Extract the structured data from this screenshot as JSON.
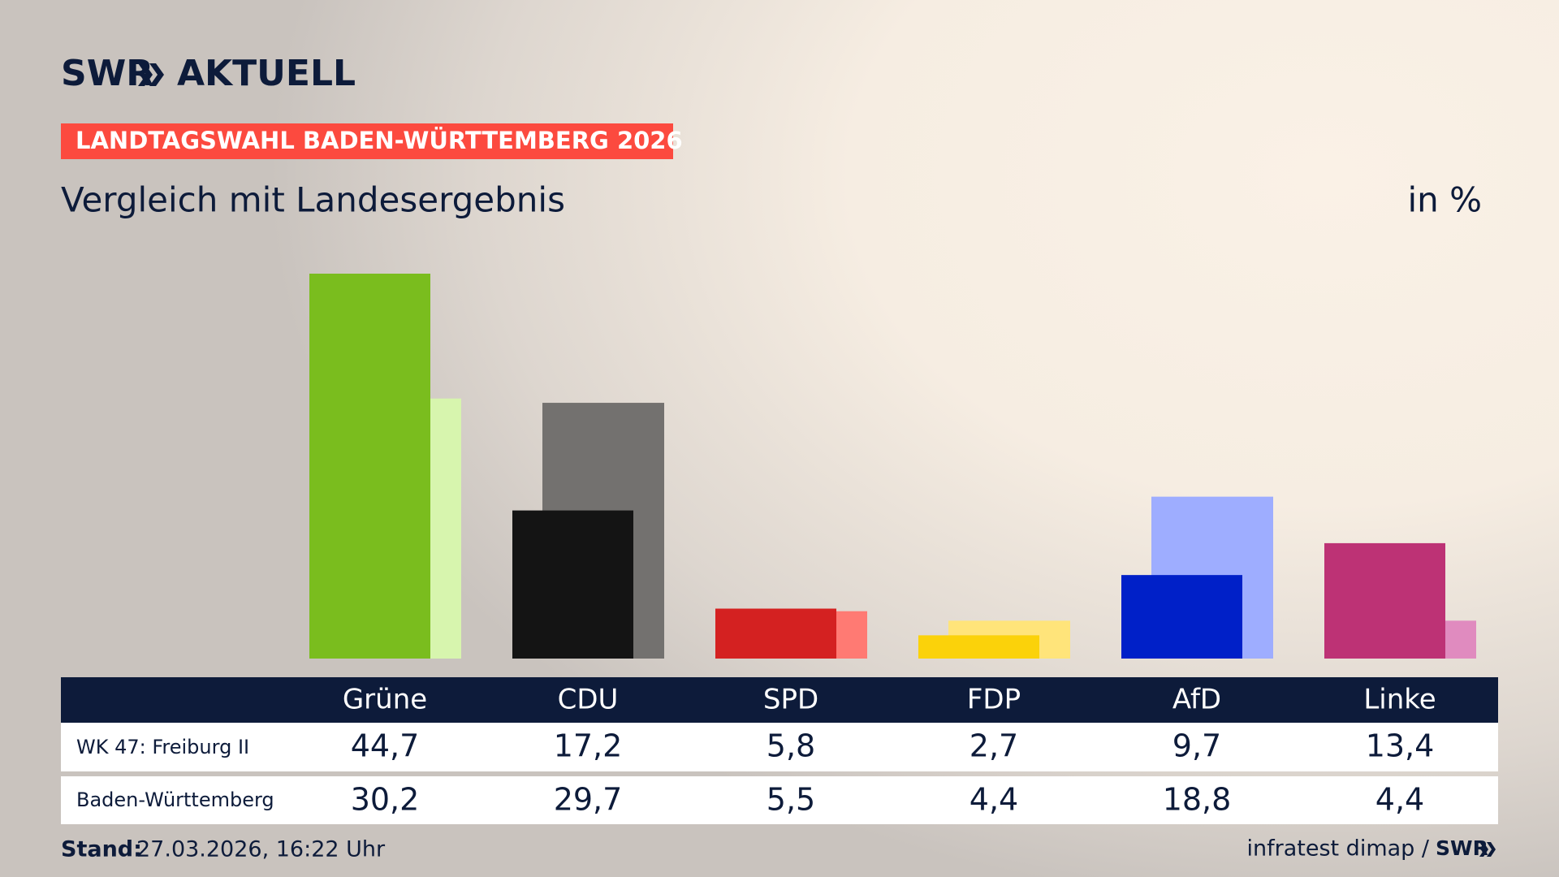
{
  "brand": {
    "name": "SWR",
    "product": "AKTUELL"
  },
  "chart_data": {
    "type": "bar",
    "header": "LANDTAGSWAHL BADEN-WÜRTTEMBERG 2026",
    "title": "Vergleich mit Landesergebnis",
    "unit": "in %",
    "categories": [
      "Grüne",
      "CDU",
      "SPD",
      "FDP",
      "AfD",
      "Linke"
    ],
    "series": [
      {
        "name": "WK 47: Freiburg II",
        "colors": [
          "#7abd1e",
          "#141414",
          "#d42121",
          "#fbd20a",
          "#0020c8",
          "#bd3275"
        ],
        "values": [
          44.7,
          17.2,
          5.8,
          2.7,
          9.7,
          13.4
        ],
        "value_labels": [
          "44,7",
          "17,2",
          "5,8",
          "2,7",
          "9,7",
          "13,4"
        ]
      },
      {
        "name": "Baden-Württemberg",
        "colors": [
          "#d7f5ae",
          "#73716f",
          "#ff7a73",
          "#ffe47a",
          "#9eadff",
          "#e08bbf"
        ],
        "values": [
          30.2,
          29.7,
          5.5,
          4.4,
          18.8,
          4.4
        ],
        "value_labels": [
          "30,2",
          "29,7",
          "5,5",
          "4,4",
          "18,8",
          "4,4"
        ]
      }
    ]
  },
  "footer": {
    "stand_label": "Stand:",
    "stand": "27.03.2026, 16:22 Uhr",
    "source": "infratest dimap /",
    "brand": "SWR"
  }
}
